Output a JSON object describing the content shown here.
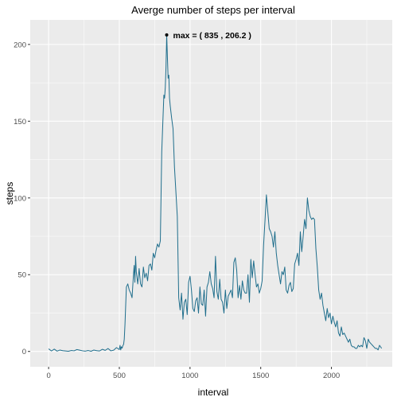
{
  "chart_data": {
    "type": "line",
    "title": "Averge number of steps per interval",
    "xlabel": "interval",
    "ylabel": "steps",
    "xlim": [
      -130,
      2430
    ],
    "ylim": [
      -10,
      216
    ],
    "x_ticks": [
      0,
      500,
      1000,
      1500,
      2000
    ],
    "y_ticks": [
      0,
      50,
      100,
      150,
      200
    ],
    "x_tick_labels": [
      "0",
      "500",
      "1000",
      "1500",
      "2000"
    ],
    "y_tick_labels": [
      "0",
      "50",
      "100",
      "150",
      "200"
    ],
    "grid": true,
    "panel_background": "#EBEBEB",
    "line_color": "#1F6E8C",
    "series": [
      {
        "x": [
          0,
          20,
          40,
          60,
          80,
          100,
          120,
          140,
          160,
          180,
          200,
          220,
          240,
          260,
          280,
          300,
          320,
          340,
          360,
          380,
          400,
          420,
          440,
          460,
          480,
          500,
          505,
          510,
          515,
          520,
          525,
          530,
          535,
          540,
          545,
          550,
          560,
          570,
          580,
          590,
          600,
          605,
          610,
          615,
          620,
          630,
          640,
          650,
          660,
          670,
          680,
          690,
          700,
          710,
          720,
          730,
          740,
          750,
          760,
          770,
          780,
          790,
          800,
          810,
          815,
          820,
          825,
          830,
          835,
          840,
          845,
          850,
          855,
          860,
          870,
          880,
          890,
          900,
          910,
          920,
          930,
          940,
          950,
          960,
          970,
          980,
          990,
          1000,
          1010,
          1020,
          1030,
          1040,
          1050,
          1060,
          1070,
          1080,
          1090,
          1100,
          1110,
          1120,
          1130,
          1140,
          1150,
          1160,
          1170,
          1180,
          1190,
          1200,
          1210,
          1220,
          1230,
          1240,
          1250,
          1260,
          1270,
          1280,
          1290,
          1300,
          1310,
          1320,
          1330,
          1340,
          1350,
          1360,
          1370,
          1380,
          1390,
          1400,
          1410,
          1420,
          1430,
          1440,
          1450,
          1460,
          1470,
          1480,
          1490,
          1500,
          1510,
          1520,
          1530,
          1540,
          1550,
          1560,
          1570,
          1580,
          1590,
          1600,
          1610,
          1620,
          1630,
          1640,
          1650,
          1660,
          1670,
          1680,
          1690,
          1700,
          1710,
          1720,
          1730,
          1740,
          1750,
          1760,
          1770,
          1780,
          1790,
          1800,
          1810,
          1820,
          1830,
          1840,
          1850,
          1860,
          1870,
          1880,
          1890,
          1900,
          1910,
          1920,
          1930,
          1940,
          1950,
          1960,
          1970,
          1980,
          1990,
          2000,
          2010,
          2020,
          2030,
          2040,
          2050,
          2060,
          2070,
          2080,
          2090,
          2100,
          2110,
          2120,
          2130,
          2140,
          2150,
          2160,
          2170,
          2180,
          2190,
          2200,
          2210,
          2220,
          2230,
          2240,
          2250,
          2260,
          2270,
          2280,
          2290,
          2300,
          2310,
          2320,
          2330,
          2340,
          2355
        ],
        "y": [
          1.7,
          0.3,
          1.5,
          0.2,
          0.9,
          0.5,
          0.3,
          0.1,
          0.6,
          0.4,
          1.2,
          0.8,
          0.4,
          0.2,
          0.6,
          0.1,
          0.9,
          0.5,
          0.3,
          1.4,
          0.7,
          1.9,
          0.4,
          0.8,
          2.5,
          1.2,
          4.0,
          1.0,
          3.0,
          2.2,
          3.8,
          4.5,
          8.0,
          17.5,
          30.0,
          42.0,
          44.0,
          40.0,
          38.0,
          35.0,
          50.0,
          56.0,
          45.0,
          62.0,
          52.0,
          44.0,
          54.0,
          44.0,
          42.0,
          55.0,
          48.0,
          51.0,
          46.0,
          56.0,
          57.0,
          53.0,
          64.0,
          61.0,
          66.0,
          70.0,
          68.0,
          72.0,
          130.0,
          155.0,
          167.0,
          165.0,
          172.0,
          185.0,
          206.2,
          192.0,
          178.0,
          180.0,
          165.0,
          160.0,
          152.0,
          145.0,
          120.0,
          104.0,
          88.0,
          35.0,
          27.0,
          38.0,
          21.0,
          32.0,
          34.0,
          24.0,
          45.0,
          49.0,
          40.0,
          28.0,
          26.0,
          33.0,
          35.0,
          25.0,
          42.0,
          31.0,
          30.0,
          40.0,
          23.0,
          42.0,
          45.0,
          52.0,
          44.0,
          41.0,
          35.0,
          62.0,
          39.0,
          34.0,
          47.0,
          34.0,
          32.0,
          25.0,
          40.0,
          28.0,
          36.0,
          38.0,
          40.0,
          35.0,
          58.0,
          61.0,
          53.0,
          35.0,
          43.0,
          34.0,
          46.0,
          40.0,
          38.0,
          38.0,
          50.0,
          32.0,
          60.0,
          48.0,
          59.0,
          50.0,
          42.0,
          44.0,
          38.0,
          41.0,
          46.0,
          69.0,
          85.0,
          102.0,
          91.0,
          80.0,
          78.0,
          75.0,
          68.0,
          78.0,
          64.0,
          56.0,
          50.0,
          44.0,
          52.0,
          50.0,
          55.0,
          40.0,
          38.0,
          43.0,
          45.0,
          39.0,
          41.0,
          57.0,
          60.0,
          64.0,
          56.0,
          78.0,
          65.0,
          75.0,
          86.0,
          80.0,
          100.0,
          92.0,
          88.0,
          86.0,
          87.0,
          86.0,
          67.0,
          55.0,
          40.0,
          34.0,
          38.0,
          30.0,
          25.0,
          20.0,
          28.0,
          22.0,
          25.0,
          18.0,
          23.0,
          19.0,
          16.0,
          20.0,
          12.0,
          10.0,
          16.0,
          11.0,
          12.0,
          10.0,
          8.0,
          6.0,
          8.0,
          4.0,
          3.0,
          3.0,
          2.0,
          2.0,
          4.0,
          3.0,
          4.0,
          3.0,
          9.0,
          7.0,
          2.0,
          8.0,
          6.0,
          5.0,
          4.0,
          3.0,
          2.0,
          2.0,
          1.0,
          4.0,
          2.0
        ]
      }
    ],
    "annotation": {
      "x": 835,
      "y": 206.2,
      "label": "max = ( 835 , 206.2 )"
    }
  }
}
